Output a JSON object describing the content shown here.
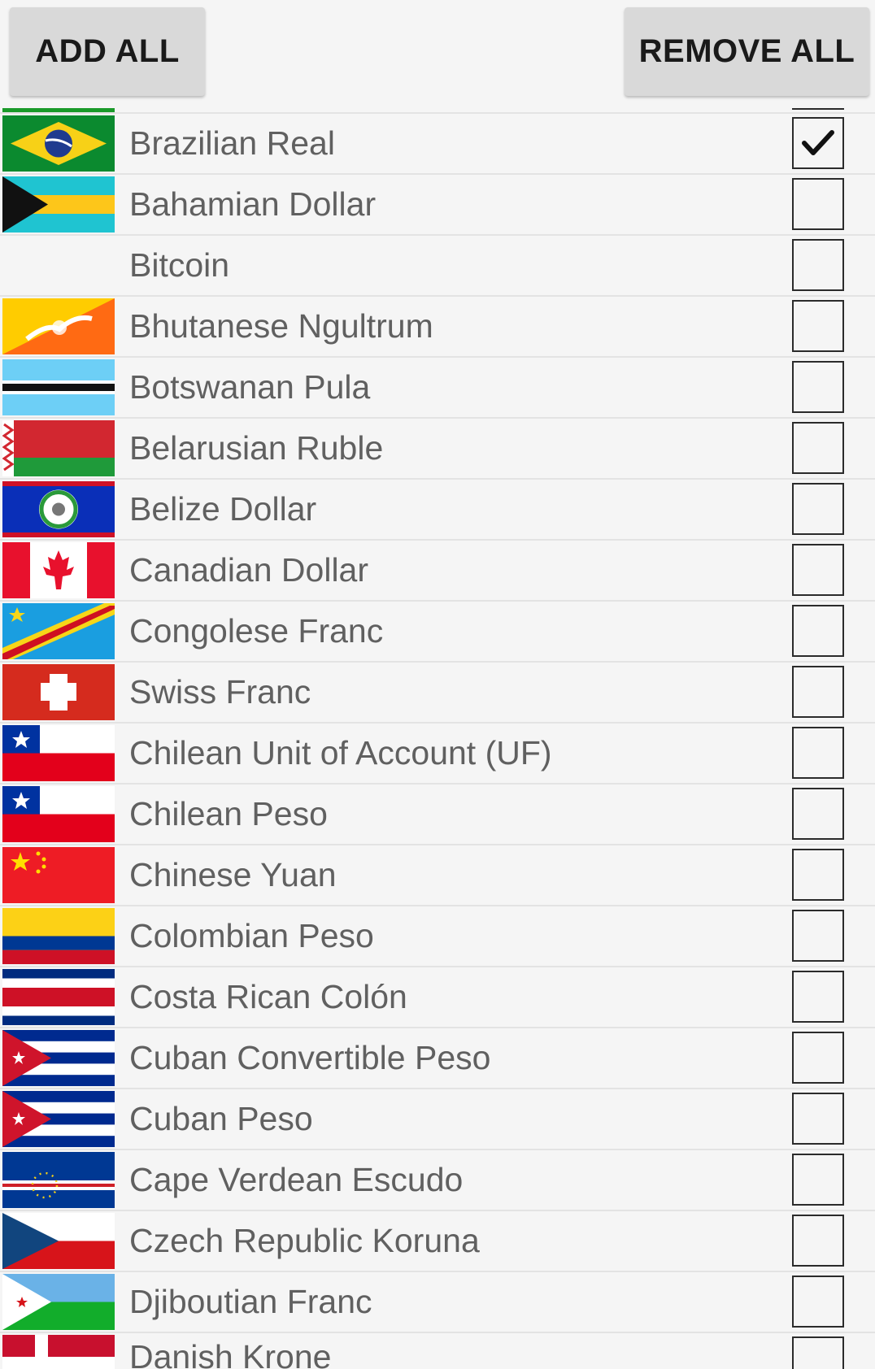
{
  "toolbar": {
    "add_all_label": "ADD ALL",
    "remove_all_label": "REMOVE ALL"
  },
  "currencies": [
    {
      "name": "Brazilian Real",
      "flag": "brazil-flag-icon",
      "checked": true
    },
    {
      "name": "Bahamian Dollar",
      "flag": "bahamas-flag-icon",
      "checked": false
    },
    {
      "name": "Bitcoin",
      "flag": "none",
      "checked": false
    },
    {
      "name": "Bhutanese Ngultrum",
      "flag": "bhutan-flag-icon",
      "checked": false
    },
    {
      "name": "Botswanan Pula",
      "flag": "botswana-flag-icon",
      "checked": false
    },
    {
      "name": "Belarusian Ruble",
      "flag": "belarus-flag-icon",
      "checked": false
    },
    {
      "name": "Belize Dollar",
      "flag": "belize-flag-icon",
      "checked": false
    },
    {
      "name": "Canadian Dollar",
      "flag": "canada-flag-icon",
      "checked": false
    },
    {
      "name": "Congolese Franc",
      "flag": "congo-flag-icon",
      "checked": false
    },
    {
      "name": "Swiss Franc",
      "flag": "switzerland-flag-icon",
      "checked": false
    },
    {
      "name": "Chilean Unit of Account (UF)",
      "flag": "chile-flag-icon",
      "checked": false
    },
    {
      "name": "Chilean Peso",
      "flag": "chile-flag-icon",
      "checked": false
    },
    {
      "name": "Chinese Yuan",
      "flag": "china-flag-icon",
      "checked": false
    },
    {
      "name": "Colombian Peso",
      "flag": "colombia-flag-icon",
      "checked": false
    },
    {
      "name": "Costa Rican Colón",
      "flag": "costa-rica-flag-icon",
      "checked": false
    },
    {
      "name": "Cuban Convertible Peso",
      "flag": "cuba-flag-icon",
      "checked": false
    },
    {
      "name": "Cuban Peso",
      "flag": "cuba-flag-icon",
      "checked": false
    },
    {
      "name": "Cape Verdean Escudo",
      "flag": "cape-verde-flag-icon",
      "checked": false
    },
    {
      "name": "Czech Republic Koruna",
      "flag": "czech-flag-icon",
      "checked": false
    },
    {
      "name": "Djiboutian Franc",
      "flag": "djibouti-flag-icon",
      "checked": false
    },
    {
      "name": "Danish Krone",
      "flag": "denmark-flag-icon",
      "checked": false
    }
  ],
  "colors": {
    "background": "#f5f5f5",
    "button_bg": "#d9d9d9",
    "text": "#606060",
    "divider": "#e3e3e3"
  }
}
